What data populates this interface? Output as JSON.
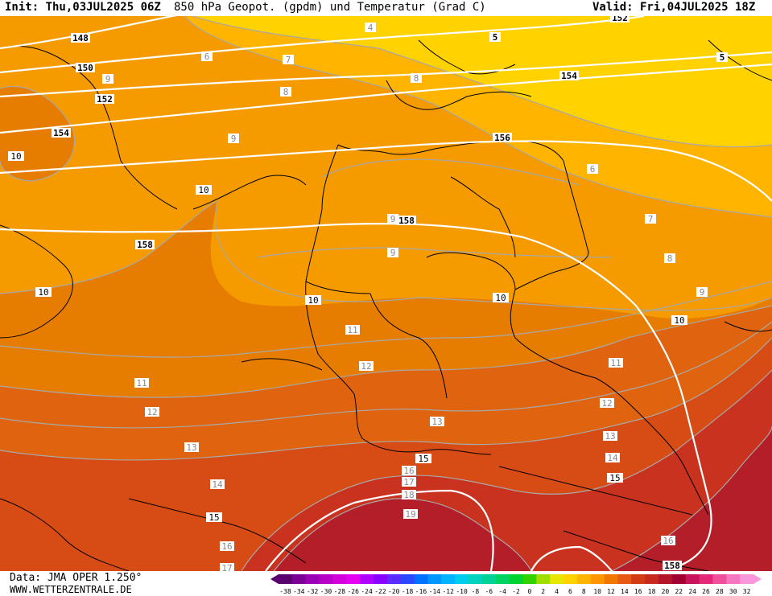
{
  "header": {
    "init": "Init: Thu,03JUL2025 06Z",
    "title": "850 hPa Geopot. (gpdm) und Temperatur (Grad C)",
    "valid": "Valid: Fri,04JUL2025 18Z"
  },
  "footer": {
    "data_source": "Data: JMA OPER 1.250°",
    "url": "WWW.WETTERZENTRALE.DE"
  },
  "legend": {
    "values": [
      "-38",
      "-34",
      "-32",
      "-30",
      "-28",
      "-26",
      "-24",
      "-22",
      "-20",
      "-18",
      "-16",
      "-14",
      "-12",
      "-10",
      "-8",
      "-6",
      "-4",
      "-2",
      "0",
      "2",
      "4",
      "6",
      "8",
      "10",
      "12",
      "14",
      "16",
      "18",
      "20",
      "22",
      "24",
      "26",
      "28",
      "30",
      "32"
    ],
    "colors": [
      "#5a006e",
      "#7a0096",
      "#9a00b4",
      "#b800c8",
      "#d400dc",
      "#e400f0",
      "#b000ff",
      "#8a00ff",
      "#5a2cff",
      "#2a48ff",
      "#0070ff",
      "#0096ff",
      "#00b4ff",
      "#00cceb",
      "#00d2c0",
      "#00d296",
      "#00d264",
      "#00d232",
      "#32d200",
      "#a0dc00",
      "#e6e600",
      "#ffd200",
      "#ffb400",
      "#ff9600",
      "#f07800",
      "#e65a14",
      "#d23c14",
      "#c8281e",
      "#b41428",
      "#a00032",
      "#c8145a",
      "#e6287d",
      "#f0509b",
      "#f578be",
      "#fa96dc"
    ]
  },
  "map_labels": {
    "geopotential": [
      {
        "text": "148"
      },
      {
        "text": "150"
      },
      {
        "text": "152"
      },
      {
        "text": "154"
      },
      {
        "text": "156"
      },
      {
        "text": "158"
      },
      {
        "text": "158"
      },
      {
        "text": "158"
      },
      {
        "text": "154"
      },
      {
        "text": "152"
      },
      {
        "text": "5"
      },
      {
        "text": "5"
      }
    ],
    "temperature": [
      {
        "text": "4"
      },
      {
        "text": "6"
      },
      {
        "text": "7"
      },
      {
        "text": "8"
      },
      {
        "text": "9"
      },
      {
        "text": "9"
      },
      {
        "text": "10"
      },
      {
        "text": "10"
      },
      {
        "text": "10"
      },
      {
        "text": "10"
      },
      {
        "text": "10"
      },
      {
        "text": "10"
      },
      {
        "text": "11"
      },
      {
        "text": "11"
      },
      {
        "text": "11"
      },
      {
        "text": "12"
      },
      {
        "text": "12"
      },
      {
        "text": "12"
      },
      {
        "text": "13"
      },
      {
        "text": "13"
      },
      {
        "text": "13"
      },
      {
        "text": "14"
      },
      {
        "text": "14"
      },
      {
        "text": "15"
      },
      {
        "text": "15"
      },
      {
        "text": "15"
      },
      {
        "text": "16"
      },
      {
        "text": "16"
      },
      {
        "text": "16"
      },
      {
        "text": "17"
      },
      {
        "text": "17"
      },
      {
        "text": "18"
      },
      {
        "text": "19"
      },
      {
        "text": "6"
      },
      {
        "text": "7"
      },
      {
        "text": "8"
      },
      {
        "text": "9"
      },
      {
        "text": "8"
      },
      {
        "text": "9"
      },
      {
        "text": "9"
      }
    ]
  }
}
